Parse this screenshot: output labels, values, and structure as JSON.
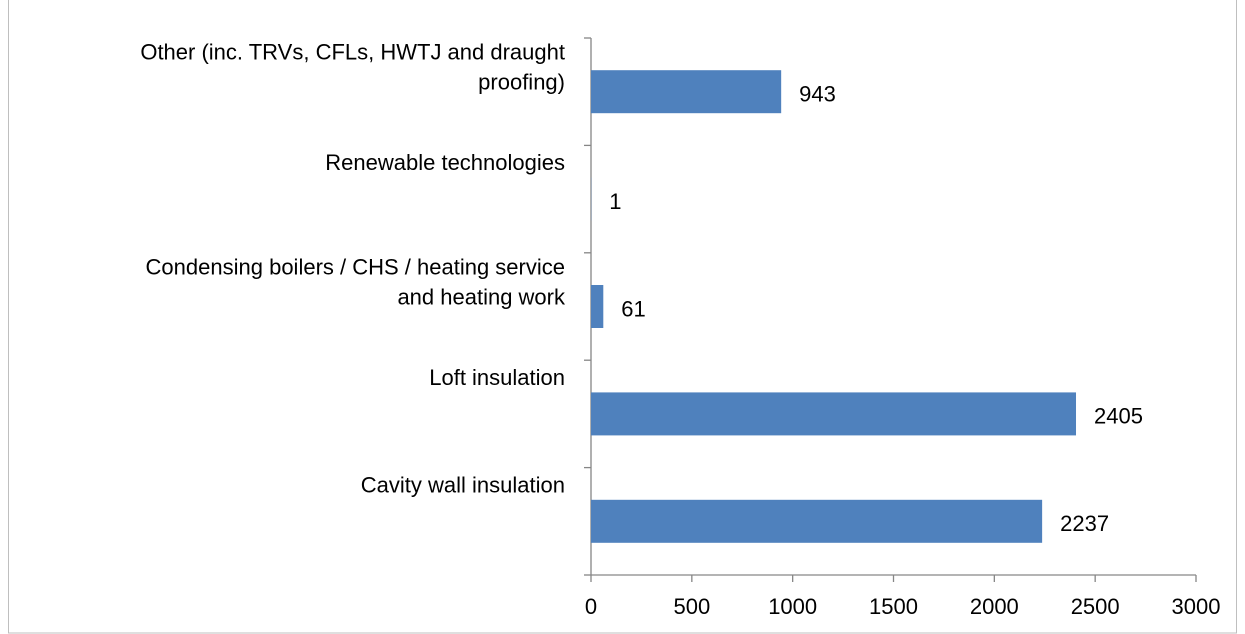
{
  "chart_data": {
    "type": "bar",
    "orientation": "horizontal",
    "categories": [
      "Other (inc. TRVs, CFLs, HWTJ and draught\nproofing)",
      "Renewable technologies",
      "Condensing boilers / CHS / heating service\nand heating work",
      "Loft insulation",
      "Cavity wall insulation"
    ],
    "values": [
      943,
      1,
      61,
      2405,
      2237
    ],
    "color": "#4f81bd",
    "xlim": [
      0,
      3000
    ],
    "xticks": [
      0,
      500,
      1000,
      1500,
      2000,
      2500,
      3000
    ],
    "grid": false
  }
}
